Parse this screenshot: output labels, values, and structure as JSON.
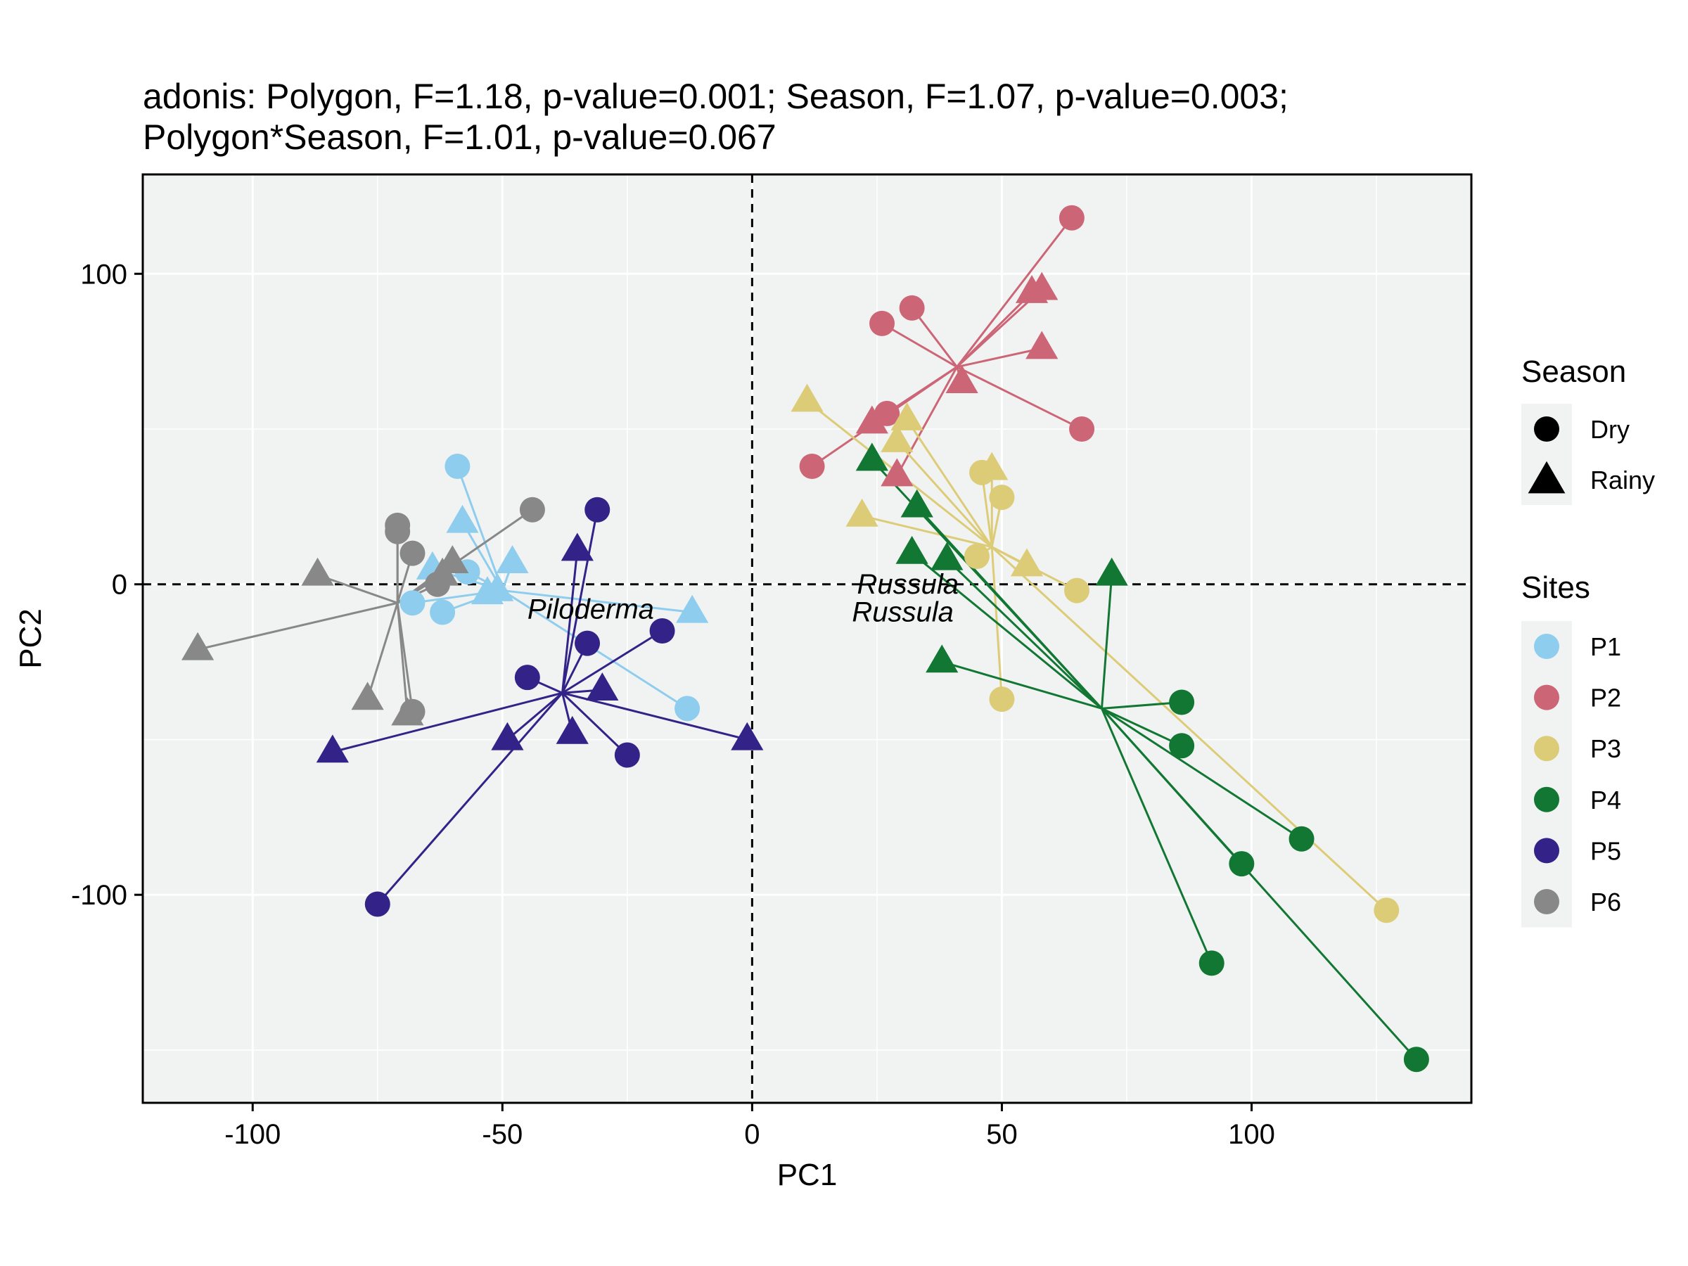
{
  "chart_data": {
    "type": "scatter",
    "title_lines": [
      "adonis: Polygon, F=1.18, p-value=0.001; Season, F=1.07, p-value=0.003;",
      "Polygon*Season, F=1.01, p-value=0.067"
    ],
    "xlabel": "PC1",
    "ylabel": "PC2",
    "xlim": [
      -122,
      144
    ],
    "ylim": [
      -167,
      132
    ],
    "xticks": [
      -100,
      -50,
      0,
      50,
      100
    ],
    "yticks": [
      -100,
      0,
      100
    ],
    "xtick_labels": [
      "-100",
      "-50",
      "0",
      "50",
      "100"
    ],
    "ytick_labels": [
      "-100",
      "0",
      "100"
    ],
    "reference_lines": {
      "x": 0,
      "y": 0,
      "style": "dashed"
    },
    "grid": true,
    "legend": {
      "placement": "right",
      "season_title": "Season",
      "season_entries": [
        {
          "label": "Dry",
          "shape": "circle"
        },
        {
          "label": "Rainy",
          "shape": "triangle"
        }
      ],
      "sites_title": "Sites",
      "sites_entries": [
        {
          "label": "P1",
          "color": "#8ecdee"
        },
        {
          "label": "P2",
          "color": "#cc6677"
        },
        {
          "label": "P3",
          "color": "#ddcc77"
        },
        {
          "label": "P4",
          "color": "#117733"
        },
        {
          "label": "P5",
          "color": "#332288"
        },
        {
          "label": "P6",
          "color": "#888888"
        }
      ]
    },
    "annotations": [
      {
        "text": "Piloderma",
        "x": -45,
        "y": -11
      },
      {
        "text": "Russula",
        "x": 21,
        "y": -3
      },
      {
        "text": "Russula",
        "x": 20,
        "y": -12
      }
    ],
    "series": [
      {
        "site": "P1",
        "color": "#8ecdee",
        "centroid": [
          -50,
          -2
        ],
        "dry": [
          [
            -59,
            38
          ],
          [
            -68,
            -6
          ],
          [
            -62,
            -9
          ],
          [
            -57,
            4
          ],
          [
            -13,
            -40
          ]
        ],
        "rainy": [
          [
            -58,
            20
          ],
          [
            -64,
            5
          ],
          [
            -48,
            7
          ],
          [
            -51,
            -2
          ],
          [
            -53,
            -3
          ],
          [
            -12,
            -9
          ]
        ]
      },
      {
        "site": "P2",
        "color": "#cc6677",
        "centroid": [
          41,
          70
        ],
        "dry": [
          [
            64,
            118
          ],
          [
            26,
            84
          ],
          [
            32,
            89
          ],
          [
            12,
            38
          ],
          [
            27,
            55
          ],
          [
            66,
            50
          ]
        ],
        "rainy": [
          [
            56,
            94
          ],
          [
            58,
            95
          ],
          [
            58,
            76
          ],
          [
            42,
            65
          ],
          [
            24,
            52
          ],
          [
            29,
            35
          ]
        ]
      },
      {
        "site": "P3",
        "color": "#ddcc77",
        "centroid": [
          48,
          12
        ],
        "dry": [
          [
            46,
            36
          ],
          [
            50,
            28
          ],
          [
            45,
            9
          ],
          [
            65,
            -2
          ],
          [
            50,
            -37
          ],
          [
            127,
            -105
          ]
        ],
        "rainy": [
          [
            11,
            59
          ],
          [
            31,
            53
          ],
          [
            29,
            46
          ],
          [
            48,
            37
          ],
          [
            22,
            22
          ],
          [
            55,
            6
          ]
        ]
      },
      {
        "site": "P4",
        "color": "#117733",
        "centroid": [
          70,
          -40
        ],
        "dry": [
          [
            86,
            -38
          ],
          [
            86,
            -52
          ],
          [
            110,
            -82
          ],
          [
            98,
            -90
          ],
          [
            92,
            -122
          ],
          [
            133,
            -153
          ]
        ],
        "rainy": [
          [
            24,
            40
          ],
          [
            33,
            25
          ],
          [
            32,
            10
          ],
          [
            39,
            8
          ],
          [
            72,
            3
          ],
          [
            38,
            -25
          ]
        ]
      },
      {
        "site": "P5",
        "color": "#332288",
        "centroid": [
          -38,
          -35
        ],
        "dry": [
          [
            -31,
            24
          ],
          [
            -33,
            -19
          ],
          [
            -18,
            -15
          ],
          [
            -45,
            -30
          ],
          [
            -25,
            -55
          ],
          [
            -75,
            -103
          ]
        ],
        "rainy": [
          [
            -35,
            11
          ],
          [
            -30,
            -34
          ],
          [
            -36,
            -48
          ],
          [
            -49,
            -50
          ],
          [
            -1,
            -50
          ],
          [
            -84,
            -54
          ]
        ]
      },
      {
        "site": "P6",
        "color": "#888888",
        "centroid": [
          -71,
          -6
        ],
        "dry": [
          [
            -71,
            19
          ],
          [
            -71,
            17
          ],
          [
            -68,
            10
          ],
          [
            -44,
            24
          ],
          [
            -63,
            0
          ],
          [
            -68,
            -41
          ]
        ],
        "rainy": [
          [
            -60,
            7
          ],
          [
            -62,
            3
          ],
          [
            -87,
            3
          ],
          [
            -111,
            -21
          ],
          [
            -77,
            -37
          ],
          [
            -69,
            -42
          ]
        ]
      }
    ]
  }
}
